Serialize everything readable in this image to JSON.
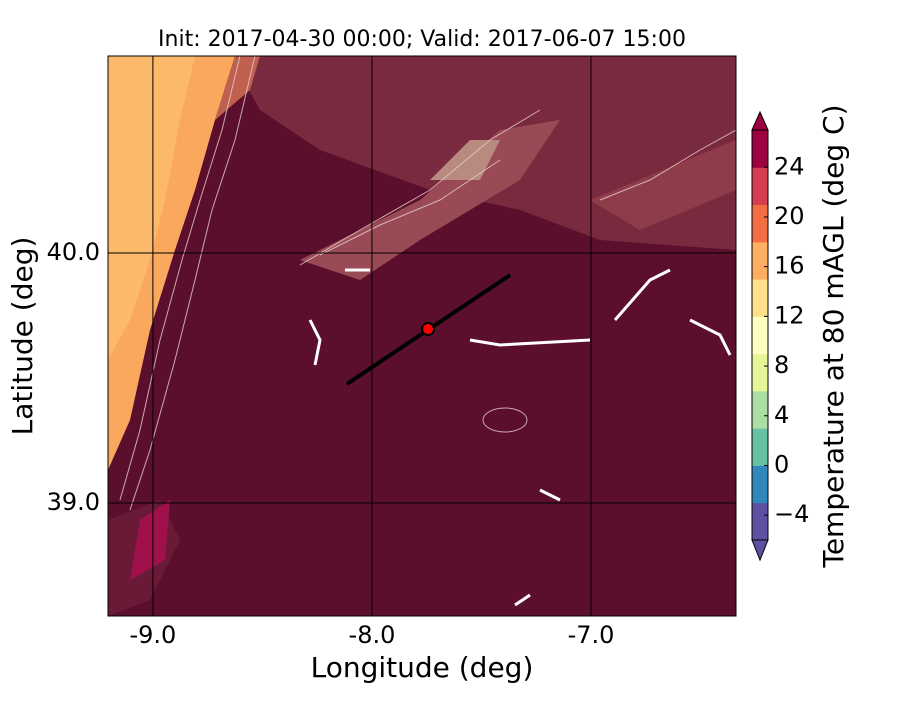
{
  "chart_data": {
    "type": "map",
    "title": "Init: 2017-04-30 00:00; Valid: 2017-06-07 15:00",
    "x_label": "Longitude (deg)",
    "y_label": "Latitude (deg)",
    "xlim": [
      -9.205,
      -6.338
    ],
    "ylim": [
      38.548,
      40.788
    ],
    "xticks": [
      {
        "value": -9,
        "label": "-9.0"
      },
      {
        "value": -8,
        "label": "-8.0"
      },
      {
        "value": -7,
        "label": "-7.0"
      }
    ],
    "yticks": [
      {
        "value": 39,
        "label": "39.0"
      },
      {
        "value": 40,
        "label": "40.0"
      }
    ],
    "grid": true,
    "transect": {
      "lon": [
        -8.114,
        -7.369
      ],
      "lat": [
        39.476,
        39.912
      ],
      "color": "#000000"
    },
    "marker": {
      "lon": -7.744,
      "lat": 39.696,
      "color": "#ff0000"
    },
    "colorbar": {
      "label": "Temperature at 80 mAGL (deg C)",
      "clim": [
        -6,
        27
      ],
      "ticks": [
        {
          "value": -4,
          "label": "−4"
        },
        0,
        4,
        8,
        12,
        16,
        20,
        24
      ],
      "colors": [
        "#5e4fa2",
        "#3288bd",
        "#66c2a5",
        "#abdda4",
        "#e6f598",
        "#ffffbf",
        "#fee08b",
        "#fdae61",
        "#f46d43",
        "#d53e4f",
        "#9e0142"
      ]
    }
  }
}
